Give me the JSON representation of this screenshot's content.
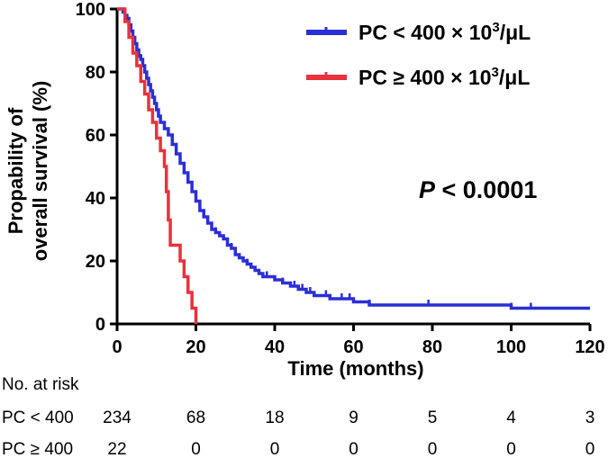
{
  "chart_data": {
    "type": "line",
    "subtype": "kaplan-meier",
    "xlabel": "Time (months)",
    "ylabel_lines": [
      "Propability of",
      "overall survival (%)"
    ],
    "xlim": [
      0,
      120
    ],
    "ylim": [
      0,
      100
    ],
    "x_ticks": [
      0,
      20,
      40,
      60,
      80,
      100,
      120
    ],
    "y_ticks": [
      0,
      20,
      40,
      60,
      80,
      100
    ],
    "legend_position": "top-right",
    "series": [
      {
        "name": "PC < 400 × 10³/μL",
        "legend_main": "PC < 400 × 10",
        "legend_sup": "3",
        "legend_tail": "/μL",
        "color": "#2b2fd6",
        "steps": [
          [
            0,
            100
          ],
          [
            1,
            100
          ],
          [
            1.5,
            99
          ],
          [
            2,
            98
          ],
          [
            2.5,
            97
          ],
          [
            3,
            95
          ],
          [
            3.5,
            93
          ],
          [
            4,
            91
          ],
          [
            4.5,
            89
          ],
          [
            5,
            87
          ],
          [
            5.5,
            85
          ],
          [
            6,
            84
          ],
          [
            6.5,
            82
          ],
          [
            7,
            80
          ],
          [
            7.5,
            78
          ],
          [
            8,
            76
          ],
          [
            8.5,
            74
          ],
          [
            9,
            72
          ],
          [
            9.5,
            70
          ],
          [
            10,
            68
          ],
          [
            10.5,
            66
          ],
          [
            11,
            64
          ],
          [
            12,
            62
          ],
          [
            13,
            60
          ],
          [
            14,
            57
          ],
          [
            15,
            54
          ],
          [
            16,
            51
          ],
          [
            17,
            48
          ],
          [
            18,
            45
          ],
          [
            19,
            42
          ],
          [
            20,
            39
          ],
          [
            21,
            36
          ],
          [
            22,
            34
          ],
          [
            23,
            32
          ],
          [
            24,
            30
          ],
          [
            25,
            29
          ],
          [
            26,
            28
          ],
          [
            27,
            27
          ],
          [
            28,
            25
          ],
          [
            29,
            24
          ],
          [
            30,
            22
          ],
          [
            31,
            21
          ],
          [
            32,
            20
          ],
          [
            33,
            19
          ],
          [
            34,
            18
          ],
          [
            35,
            17
          ],
          [
            36,
            16
          ],
          [
            37,
            15
          ],
          [
            38,
            15
          ],
          [
            40,
            14
          ],
          [
            42,
            13
          ],
          [
            44,
            12
          ],
          [
            46,
            11
          ],
          [
            48,
            10
          ],
          [
            50,
            9
          ],
          [
            52,
            9
          ],
          [
            54,
            8
          ],
          [
            58,
            8
          ],
          [
            60,
            7
          ],
          [
            62,
            7
          ],
          [
            64,
            6
          ],
          [
            99,
            6
          ],
          [
            100,
            5
          ],
          [
            120,
            5
          ]
        ],
        "censors": [
          2,
          6,
          9,
          12,
          17,
          21,
          25,
          29,
          33,
          38,
          42,
          45,
          47,
          49,
          53,
          57,
          59,
          64,
          79,
          100,
          105
        ]
      },
      {
        "name": "PC ≥ 400 × 10³/μL",
        "legend_main": "PC ≥ 400 × 10",
        "legend_sup": "3",
        "legend_tail": "/μL",
        "color": "#e8323c",
        "steps": [
          [
            0,
            100
          ],
          [
            2,
            96
          ],
          [
            3,
            91
          ],
          [
            4,
            86
          ],
          [
            5,
            82
          ],
          [
            6,
            77
          ],
          [
            7,
            73
          ],
          [
            8,
            68
          ],
          [
            9,
            64
          ],
          [
            10,
            59
          ],
          [
            11,
            55
          ],
          [
            12,
            50
          ],
          [
            12.5,
            42
          ],
          [
            13,
            33
          ],
          [
            13.5,
            25
          ],
          [
            16,
            20
          ],
          [
            17,
            15
          ],
          [
            18,
            10
          ],
          [
            19,
            5
          ],
          [
            20,
            0
          ]
        ],
        "censors": []
      }
    ],
    "annotation": {
      "prefix": "P",
      "text": " < 0.0001"
    }
  },
  "risk_table": {
    "title": "No. at risk",
    "rows": [
      {
        "label": "PC < 400",
        "values": [
          "234",
          "68",
          "18",
          "9",
          "5",
          "4",
          "3"
        ]
      },
      {
        "label": "PC ≥ 400",
        "values": [
          "22",
          "0",
          "0",
          "0",
          "0",
          "0",
          "0"
        ]
      }
    ]
  }
}
